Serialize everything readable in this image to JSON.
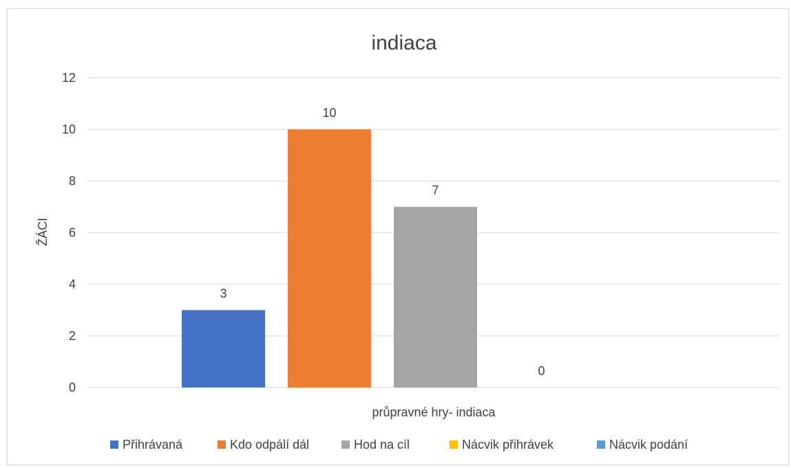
{
  "chart_data": {
    "type": "bar",
    "title": "indiaca",
    "xlabel": "průpravné hry- indiaca",
    "ylabel": "ŽÁCI",
    "categories": [
      "průpravné hry- indiaca"
    ],
    "ylim": [
      0,
      12
    ],
    "yticks": [
      0,
      2,
      4,
      6,
      8,
      10,
      12
    ],
    "grid": true,
    "legend_position": "bottom",
    "series": [
      {
        "name": "Přihrávaná",
        "values": [
          3
        ],
        "color": "#4472C4"
      },
      {
        "name": "Kdo odpálí dál",
        "values": [
          10
        ],
        "color": "#ED7D31"
      },
      {
        "name": "Hod na cíl",
        "values": [
          7
        ],
        "color": "#A5A5A5"
      },
      {
        "name": "Nácvik přihrávek",
        "values": [
          0
        ],
        "color": "#FFC000"
      },
      {
        "name": "Nácvik podání",
        "values": [
          null
        ],
        "color": "#5B9BD5"
      }
    ]
  }
}
